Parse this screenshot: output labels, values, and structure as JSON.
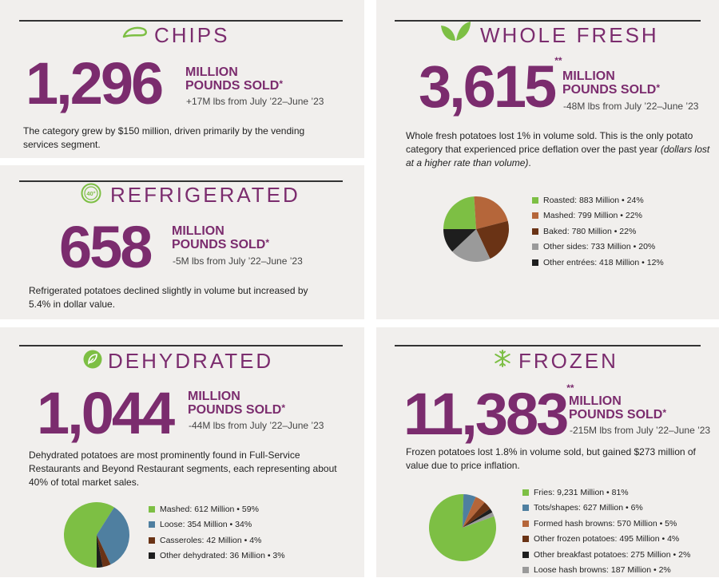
{
  "colors": {
    "purple": "#7b2c6e",
    "green": "#7dbf44",
    "panel": "#f1efed"
  },
  "chips": {
    "title": "CHIPS",
    "icon": "chip-icon",
    "number": "1,296",
    "unit_line1": "MILLION",
    "unit_line2": "POUNDS SOLD",
    "unit_mark": "*",
    "change": "+17M lbs from July ’22–June ’23",
    "description": "The category grew by $150 million, driven primarily by the vending services segment."
  },
  "refrigerated": {
    "title": "REFRIGERATED",
    "icon": "thermometer-40-icon",
    "number": "658",
    "unit_line1": "MILLION",
    "unit_line2": "POUNDS SOLD",
    "unit_mark": "*",
    "change": "-5M lbs from July ’22–June ’23",
    "description": "Refrigerated potatoes declined slightly in volume but increased by 5.4% in dollar value."
  },
  "whole_fresh": {
    "title": "WHOLE FRESH",
    "icon": "leaves-icon",
    "number": "3,615",
    "number_mark": "**",
    "unit_line1": "MILLION",
    "unit_line2": "POUNDS SOLD",
    "unit_mark": "*",
    "change": "-48M lbs from July ’22–June ’23",
    "description": "Whole fresh potatoes lost 1% in volume sold. This is the only potato category that experienced price deflation over the past year",
    "description_em": "(dollars lost at a higher rate than volume)",
    "description_end": ".",
    "legend": [
      {
        "label": "Roasted: 883 Million • 24%",
        "color": "#7dbf44"
      },
      {
        "label": "Mashed: 799 Million • 22%",
        "color": "#b5663a"
      },
      {
        "label": "Baked: 780 Million • 22%",
        "color": "#6a3315"
      },
      {
        "label": "Other sides: 733 Million • 20%",
        "color": "#9a9a9a"
      },
      {
        "label": "Other entrées: 418 Million • 12%",
        "color": "#1e1e1e"
      }
    ]
  },
  "dehydrated": {
    "title": "DEHYDRATED",
    "icon": "leaf-badge-icon",
    "number": "1,044",
    "unit_line1": "MILLION",
    "unit_line2": "POUNDS SOLD",
    "unit_mark": "*",
    "change": "-44M lbs from July ’22–June ’23",
    "description": "Dehydrated potatoes are most prominently found in Full-Service Restaurants and Beyond Restaurant segments, each representing about 40% of total market sales.",
    "legend": [
      {
        "label": "Mashed: 612 Million • 59%",
        "color": "#7dbf44"
      },
      {
        "label": "Loose: 354 Million • 34%",
        "color": "#4f7fa0"
      },
      {
        "label": "Casseroles: 42 Million • 4%",
        "color": "#6a3315"
      },
      {
        "label": "Other dehydrated: 36 Million • 3%",
        "color": "#1e1e1e"
      }
    ]
  },
  "frozen": {
    "title": "FROZEN",
    "icon": "snowflake-icon",
    "number": "11,383",
    "number_mark": "**",
    "unit_line1": "MILLION",
    "unit_line2": "POUNDS SOLD",
    "unit_mark": "*",
    "change": "-215M lbs from July ’22–June ’23",
    "description": "Frozen potatoes lost 1.8% in volume sold, but gained $273 million of value due to price inflation.",
    "legend": [
      {
        "label": "Fries: 9,231 Million • 81%",
        "color": "#7dbf44"
      },
      {
        "label": "Tots/shapes: 627 Million • 6%",
        "color": "#4f7fa0"
      },
      {
        "label": "Formed hash browns: 570 Million • 5%",
        "color": "#b5663a"
      },
      {
        "label": "Other frozen potatoes: 495 Million • 4%",
        "color": "#6a3315"
      },
      {
        "label": "Other breakfast potatoes: 275 Million • 2%",
        "color": "#1e1e1e"
      },
      {
        "label": "Loose hash browns: 187 Million • 2%",
        "color": "#9a9a9a"
      }
    ]
  },
  "chart_data": [
    {
      "type": "pie",
      "categories": [
        "Roasted",
        "Mashed",
        "Baked",
        "Other sides",
        "Other entrées"
      ],
      "values": [
        24,
        22,
        22,
        20,
        12
      ]
    },
    {
      "type": "pie",
      "categories": [
        "Mashed",
        "Loose",
        "Casseroles",
        "Other dehydrated"
      ],
      "values": [
        59,
        34,
        4,
        3
      ]
    },
    {
      "type": "pie",
      "categories": [
        "Fries",
        "Tots/shapes",
        "Formed hash browns",
        "Other frozen potatoes",
        "Other breakfast potatoes",
        "Loose hash browns"
      ],
      "values": [
        81,
        6,
        5,
        4,
        2,
        2
      ]
    }
  ]
}
